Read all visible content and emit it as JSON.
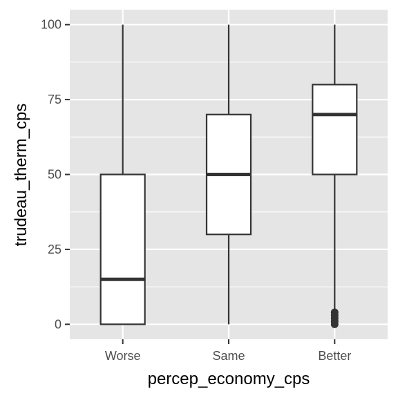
{
  "chart_data": {
    "type": "boxplot",
    "title": "",
    "xlabel": "percep_economy_cps",
    "ylabel": "trudeau_therm_cps",
    "categories": [
      "Worse",
      "Same",
      "Better"
    ],
    "ylim": [
      -5,
      105
    ],
    "yticks": [
      0,
      25,
      50,
      75,
      100
    ],
    "grid": true,
    "legend": "none",
    "boxes": [
      {
        "category": "Worse",
        "min": 0,
        "q1": 0,
        "median": 15,
        "q3": 50,
        "max": 100,
        "outliers": []
      },
      {
        "category": "Same",
        "min": 0,
        "q1": 30,
        "median": 50,
        "q3": 70,
        "max": 100,
        "outliers": []
      },
      {
        "category": "Better",
        "min": 5,
        "q1": 50,
        "median": 70,
        "q3": 80,
        "max": 100,
        "outliers": [
          0,
          1,
          2,
          3,
          4
        ]
      }
    ],
    "colors": {
      "panel_background": "#e5e5e5",
      "grid": "#ffffff",
      "box_fill": "#ffffff",
      "box_line": "#333333",
      "tick_text": "#4d4d4d",
      "axis_title": "#000000"
    }
  }
}
